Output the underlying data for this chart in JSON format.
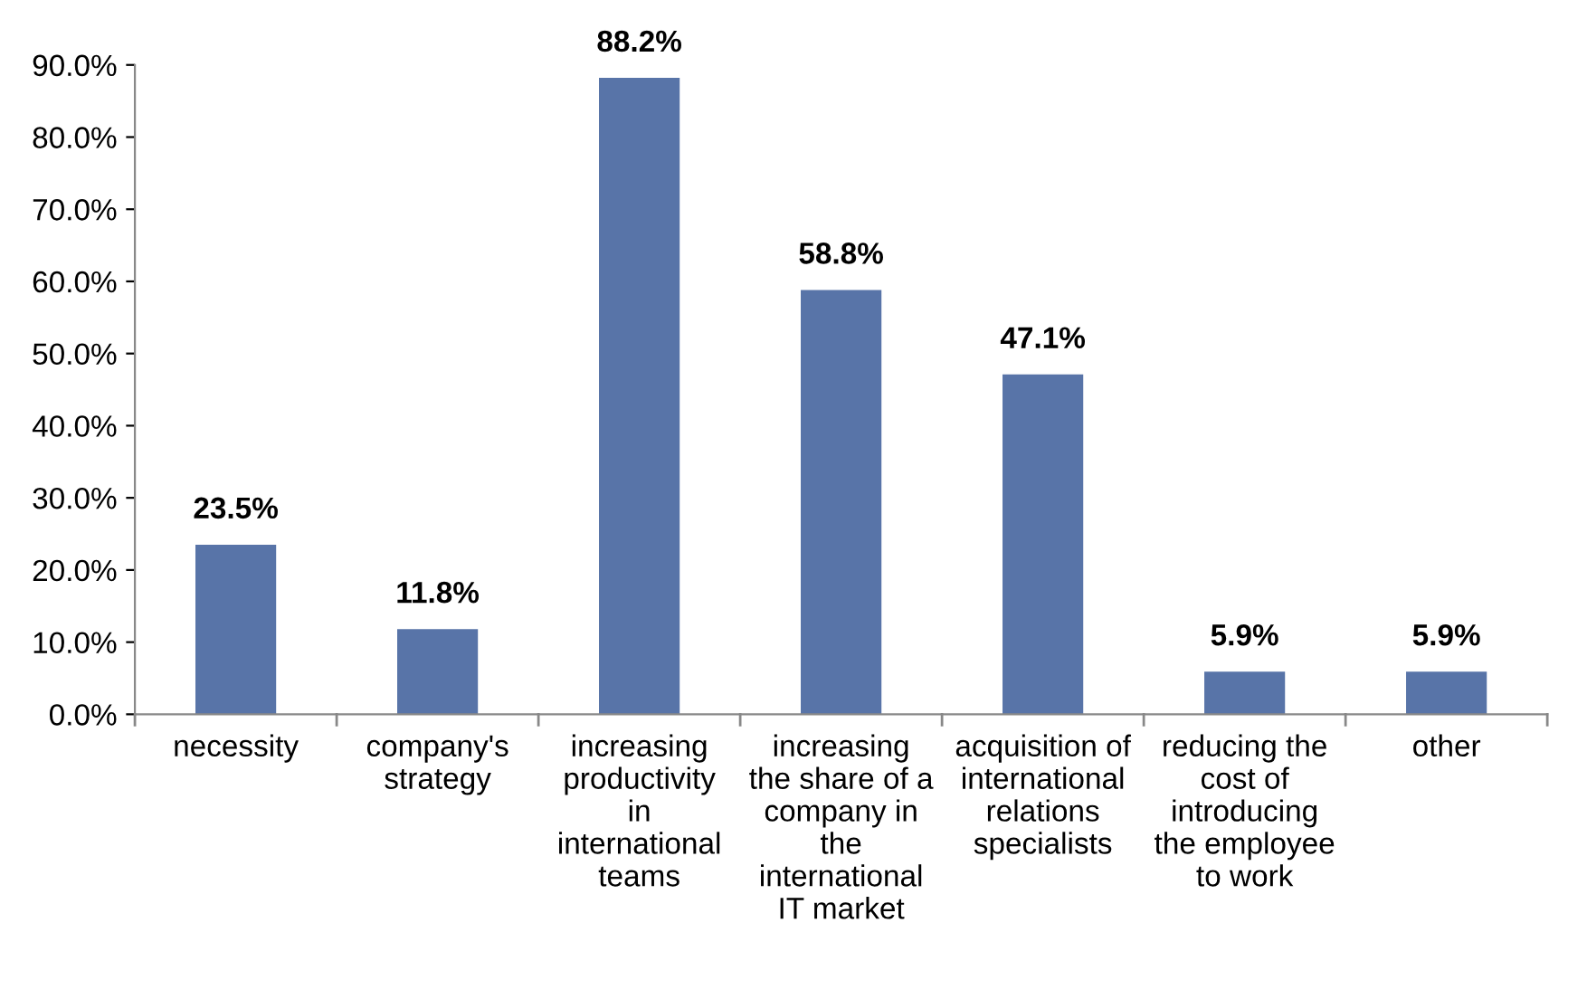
{
  "chart_data": {
    "type": "bar",
    "categories": [
      "necessity",
      "company's\nstrategy",
      "increasing\nproductivity\nin\ninternational\nteams",
      "increasing\nthe share of a\ncompany in\nthe\ninternational\nIT market",
      "acquisition of\ninternational\nrelations\nspecialists",
      "reducing the\ncost of\nintroducing\nthe employee\nto work",
      "other"
    ],
    "values": [
      23.5,
      11.8,
      88.2,
      58.8,
      47.1,
      5.9,
      5.9
    ],
    "value_labels": [
      "23.5%",
      "11.8%",
      "88.2%",
      "58.8%",
      "47.1%",
      "5.9%",
      "5.9%"
    ],
    "color": "#5874a8",
    "ylim": [
      0,
      90
    ],
    "yticks": [
      {
        "value": 0,
        "label": "0.0%"
      },
      {
        "value": 10,
        "label": "10.0%"
      },
      {
        "value": 20,
        "label": "20.0%"
      },
      {
        "value": 30,
        "label": "30.0%"
      },
      {
        "value": 40,
        "label": "40.0%"
      },
      {
        "value": 50,
        "label": "50.0%"
      },
      {
        "value": 60,
        "label": "60.0%"
      },
      {
        "value": 70,
        "label": "70.0%"
      },
      {
        "value": 80,
        "label": "80.0%"
      },
      {
        "value": 90,
        "label": "90.0%"
      }
    ],
    "grid": false
  }
}
